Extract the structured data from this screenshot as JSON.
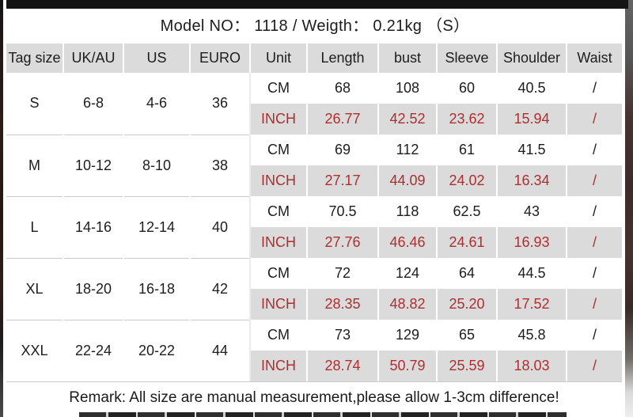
{
  "title": "Model NO： 1118 / Weigth： 0.21kg （S）",
  "colors": {
    "accent_red": "#ad2f31",
    "band_gray": "#dbdbdb",
    "bar_black": "#141414"
  },
  "table": {
    "headers": [
      "Tag size",
      "UK/AU",
      "US",
      "EURO",
      "Unit",
      "Length",
      "bust",
      "Sleeve",
      "Shoulder",
      "Waist"
    ],
    "rows": [
      {
        "tag": "S",
        "uk_au": "6-8",
        "us": "4-6",
        "euro": "36",
        "cm": {
          "unit": "CM",
          "length": "68",
          "bust": "108",
          "sleeve": "60",
          "shoulder": "40.5",
          "waist": "/"
        },
        "inch": {
          "unit": "INCH",
          "length": "26.77",
          "bust": "42.52",
          "sleeve": "23.62",
          "shoulder": "15.94",
          "waist": "/"
        }
      },
      {
        "tag": "M",
        "uk_au": "10-12",
        "us": "8-10",
        "euro": "38",
        "cm": {
          "unit": "CM",
          "length": "69",
          "bust": "112",
          "sleeve": "61",
          "shoulder": "41.5",
          "waist": "/"
        },
        "inch": {
          "unit": "INCH",
          "length": "27.17",
          "bust": "44.09",
          "sleeve": "24.02",
          "shoulder": "16.34",
          "waist": "/"
        }
      },
      {
        "tag": "L",
        "uk_au": "14-16",
        "us": "12-14",
        "euro": "40",
        "cm": {
          "unit": "CM",
          "length": "70.5",
          "bust": "118",
          "sleeve": "62.5",
          "shoulder": "43",
          "waist": "/"
        },
        "inch": {
          "unit": "INCH",
          "length": "27.76",
          "bust": "46.46",
          "sleeve": "24.61",
          "shoulder": "16.93",
          "waist": "/"
        }
      },
      {
        "tag": "XL",
        "uk_au": "18-20",
        "us": "16-18",
        "euro": "42",
        "cm": {
          "unit": "CM",
          "length": "72",
          "bust": "124",
          "sleeve": "64",
          "shoulder": "44.5",
          "waist": "/"
        },
        "inch": {
          "unit": "INCH",
          "length": "28.35",
          "bust": "48.82",
          "sleeve": "25.20",
          "shoulder": "17.52",
          "waist": "/"
        }
      },
      {
        "tag": "XXL",
        "uk_au": "22-24",
        "us": "20-22",
        "euro": "44",
        "cm": {
          "unit": "CM",
          "length": "73",
          "bust": "129",
          "sleeve": "65",
          "shoulder": "45.8",
          "waist": "/"
        },
        "inch": {
          "unit": "INCH",
          "length": "28.74",
          "bust": "50.79",
          "sleeve": "25.59",
          "shoulder": "18.03",
          "waist": "/"
        }
      }
    ]
  },
  "remark": "Remark: All size are manual measurement,please allow 1-3cm difference!"
}
